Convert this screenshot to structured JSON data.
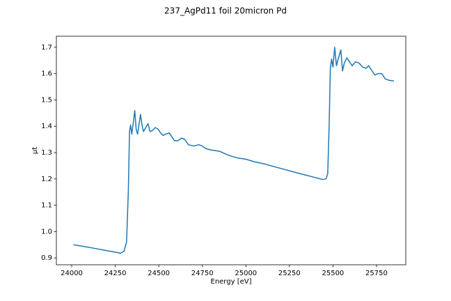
{
  "chart_data": {
    "type": "line",
    "title": "237_AgPd11 foil 20micron Pd",
    "xlabel": "Energy [eV]",
    "ylabel": "μt",
    "x": [
      24010,
      24100,
      24200,
      24250,
      24280,
      24300,
      24315,
      24325,
      24332,
      24338,
      24345,
      24355,
      24362,
      24370,
      24378,
      24385,
      24395,
      24405,
      24412,
      24425,
      24438,
      24450,
      24465,
      24480,
      24495,
      24510,
      24525,
      24540,
      24560,
      24575,
      24590,
      24610,
      24630,
      24650,
      24670,
      24700,
      24730,
      24750,
      24770,
      24800,
      24850,
      24900,
      24950,
      25000,
      25050,
      25100,
      25200,
      25300,
      25400,
      25440,
      25460,
      25470,
      25478,
      25485,
      25492,
      25500,
      25510,
      25520,
      25530,
      25545,
      25555,
      25565,
      25580,
      25595,
      25610,
      25630,
      25650,
      25670,
      25690,
      25705,
      25720,
      25740,
      25760,
      25780,
      25800,
      25820,
      25850
    ],
    "series": [
      {
        "name": "μt",
        "color": "#1f77b4",
        "values": [
          0.95,
          0.94,
          0.928,
          0.922,
          0.918,
          0.925,
          0.96,
          1.15,
          1.38,
          1.405,
          1.37,
          1.42,
          1.46,
          1.39,
          1.37,
          1.4,
          1.445,
          1.4,
          1.38,
          1.395,
          1.41,
          1.38,
          1.385,
          1.395,
          1.39,
          1.375,
          1.365,
          1.37,
          1.375,
          1.36,
          1.345,
          1.345,
          1.355,
          1.35,
          1.33,
          1.325,
          1.33,
          1.325,
          1.315,
          1.31,
          1.305,
          1.29,
          1.28,
          1.275,
          1.265,
          1.258,
          1.24,
          1.222,
          1.205,
          1.198,
          1.2,
          1.22,
          1.4,
          1.62,
          1.655,
          1.625,
          1.7,
          1.63,
          1.655,
          1.69,
          1.61,
          1.64,
          1.66,
          1.645,
          1.63,
          1.645,
          1.64,
          1.625,
          1.62,
          1.63,
          1.615,
          1.595,
          1.6,
          1.6,
          1.58,
          1.575,
          1.572
        ]
      }
    ],
    "xlim": [
      23912,
      25918
    ],
    "xticks": [
      24000,
      24250,
      24500,
      24750,
      25000,
      25250,
      25500,
      25750
    ],
    "ylim": [
      0.874,
      1.742
    ],
    "yticks": [
      {
        "value": 0.9,
        "label": "0.9"
      },
      {
        "value": 1.0,
        "label": "1.0"
      },
      {
        "value": 1.1,
        "label": "1.1"
      },
      {
        "value": 1.2,
        "label": "1.2"
      },
      {
        "value": 1.3,
        "label": "1.3"
      },
      {
        "value": 1.4,
        "label": "1.4"
      },
      {
        "value": 1.5,
        "label": "1.5"
      },
      {
        "value": 1.6,
        "label": "1.6"
      },
      {
        "value": 1.7,
        "label": "1.7"
      }
    ],
    "grid": false
  }
}
